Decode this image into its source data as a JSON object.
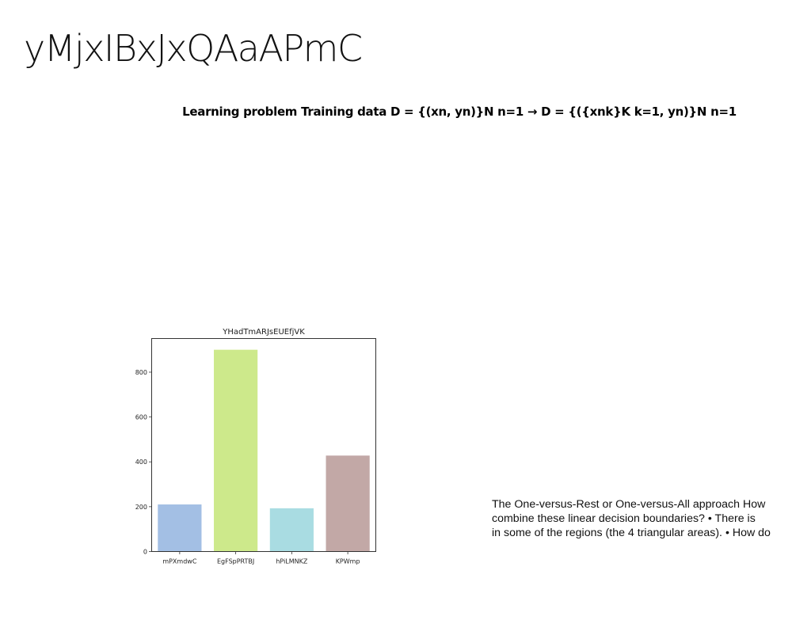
{
  "slide": {
    "title": "yMjxIBxJxQAaAPmC",
    "subtitle": "Learning problem Training data D = {(xn, yn)}N n=1 → D = {({xnk}K k=1, yn)}N n=1",
    "body_lines": [
      "The One-versus-Rest or One-versus-All approach How",
      "combine these linear decision boundaries? • There is",
      "in some of the regions (the 4 triangular areas). • How do"
    ]
  },
  "chart_data": {
    "type": "bar",
    "title": "YHadTmARJsEUEfjVK",
    "xlabel": "",
    "ylabel": "",
    "categories": [
      "mPXmdwC",
      "EgFSpPRTBJ",
      "hPiLMNKZ",
      "KPWmp"
    ],
    "values": [
      210,
      900,
      193,
      428
    ],
    "colors": [
      "#a3bfe4",
      "#cde98b",
      "#a9dce2",
      "#c2a8a6"
    ],
    "ylim": [
      0,
      950
    ],
    "yticks": [
      0,
      200,
      400,
      600,
      800
    ],
    "grid": false
  }
}
